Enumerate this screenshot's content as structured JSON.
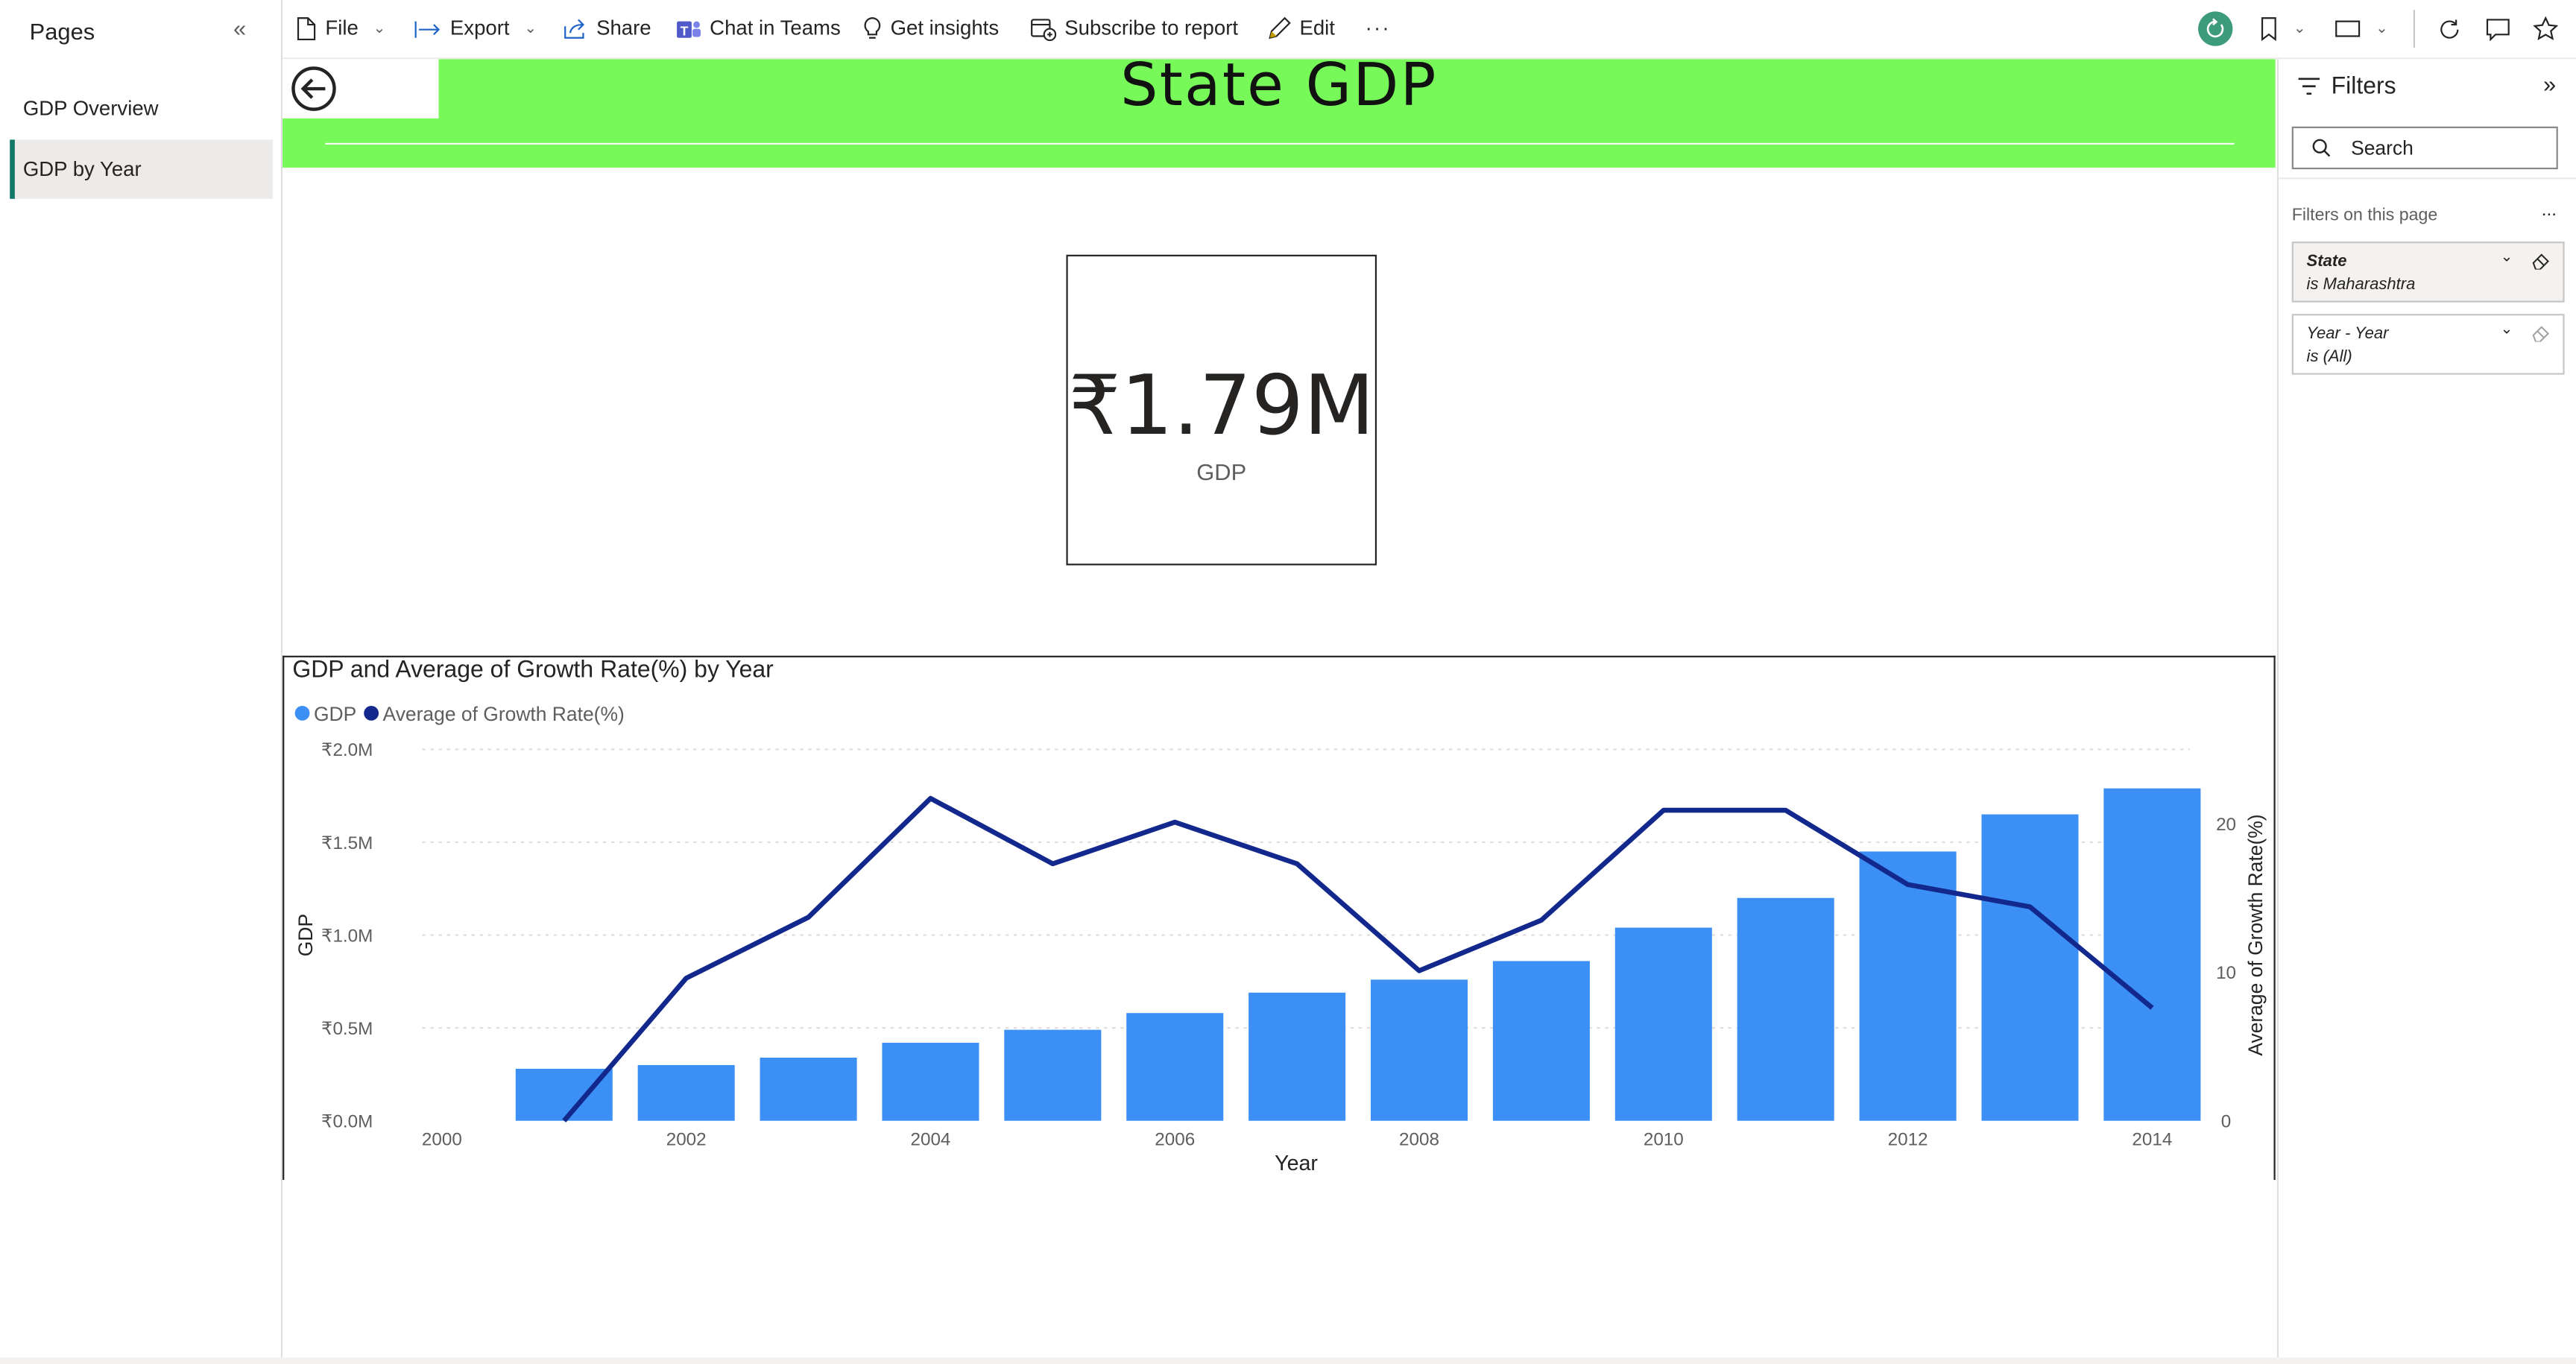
{
  "toolbar": {
    "file": "File",
    "export": "Export",
    "share": "Share",
    "chat_in_teams": "Chat in Teams",
    "get_insights": "Get insights",
    "subscribe": "Subscribe to report",
    "edit": "Edit",
    "more": "···"
  },
  "pages": {
    "title": "Pages",
    "items": [
      {
        "label": "GDP Overview",
        "active": false
      },
      {
        "label": "GDP by Year",
        "active": true
      }
    ]
  },
  "report": {
    "header_title": "State GDP",
    "card": {
      "value": "₹1.79M",
      "label": "GDP"
    }
  },
  "chart_data": {
    "type": "bar",
    "title": "GDP and Average of Growth Rate(%) by Year",
    "xlabel": "Year",
    "ylabel": "GDP",
    "y2label": "Average of Growth Rate(%)",
    "legend": [
      "GDP",
      "Average of Growth Rate(%)"
    ],
    "legend_position": "top-left",
    "x_ticks": [
      "2000",
      "2002",
      "2004",
      "2006",
      "2008",
      "2010",
      "2012",
      "2014"
    ],
    "y_ticks": [
      "₹0.0M",
      "₹0.5M",
      "₹1.0M",
      "₹1.5M",
      "₹2.0M"
    ],
    "y2_ticks": [
      "0",
      "10",
      "20"
    ],
    "ylim": [
      0,
      2.0
    ],
    "y2lim": [
      0,
      25
    ],
    "x": [
      2001,
      2002,
      2003,
      2004,
      2005,
      2006,
      2007,
      2008,
      2009,
      2010,
      2011,
      2012,
      2013,
      2014
    ],
    "series": [
      {
        "name": "GDP",
        "type": "bar",
        "color": "#3c8ff5",
        "unit": "M",
        "values": [
          0.28,
          0.3,
          0.34,
          0.42,
          0.49,
          0.58,
          0.69,
          0.76,
          0.86,
          1.04,
          1.2,
          1.45,
          1.65,
          1.79
        ]
      },
      {
        "name": "Average of Growth Rate(%)",
        "type": "line",
        "color": "#13288c",
        "values": [
          0,
          9.6,
          13.7,
          21.7,
          17.3,
          20.1,
          17.3,
          10.1,
          13.5,
          20.9,
          20.9,
          15.9,
          14.4,
          7.6
        ]
      }
    ],
    "grid": true
  },
  "filters": {
    "title": "Filters",
    "search_placeholder": "Search",
    "subtitle": "Filters on this page",
    "more": "...",
    "cards": [
      {
        "title": "State",
        "subtitle": "is Maharashtra",
        "bold": true,
        "active": true
      },
      {
        "title": "Year - Year",
        "subtitle": "is (All)",
        "bold": false,
        "active": false
      }
    ]
  },
  "colors": {
    "header_band": "#77f95a",
    "bar": "#3c8ff5",
    "line": "#13288c",
    "active_page_accent": "#117865",
    "avatar": "#3c9b7b"
  }
}
